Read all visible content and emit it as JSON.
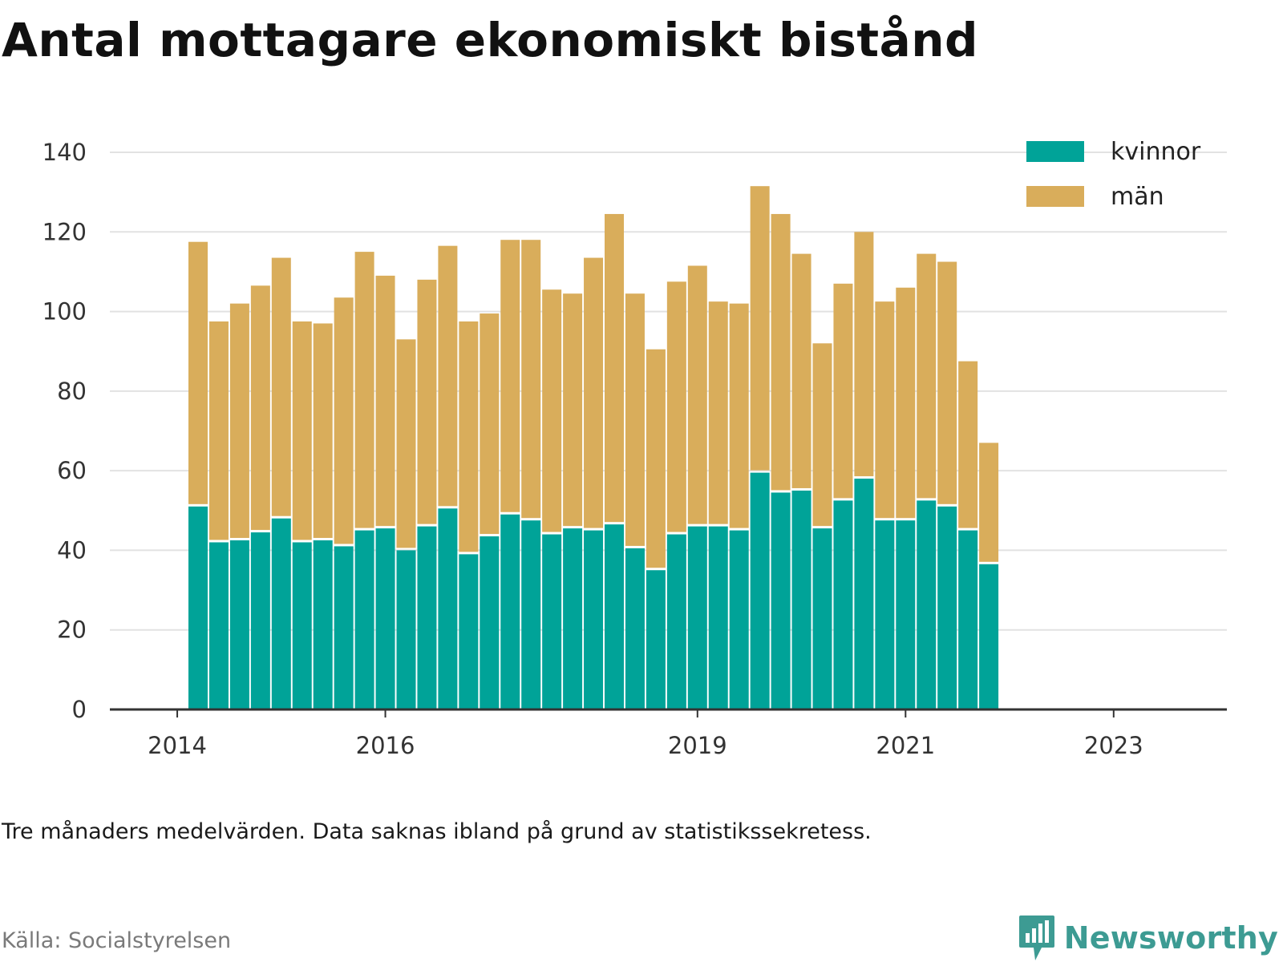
{
  "title": "Antal mottagare ekonomiskt bistånd",
  "note": "Tre månaders medelvärden. Data saknas ibland på grund av statistikssekretess.",
  "source": "Källa: Socialstyrelsen",
  "brand": {
    "name": "Newsworthy",
    "icon": "newsworthy-logo-icon",
    "color": "#3d9b93"
  },
  "colors": {
    "kvinnor": "#00a398",
    "man": "#d9ad5b",
    "grid": "#e2e2e2",
    "axis": "#333333"
  },
  "chart_data": {
    "type": "bar",
    "stacked": true,
    "x_tick_labels": [
      "2014",
      "2016",
      "2019",
      "2021",
      "2023"
    ],
    "x_tick_positions": [
      -1,
      9,
      24,
      34,
      44
    ],
    "ylim": [
      0,
      140
    ],
    "y_ticks": [
      0,
      20,
      40,
      60,
      80,
      100,
      120,
      140
    ],
    "grid": true,
    "legend_position": "top-right",
    "series": [
      {
        "name": "kvinnor",
        "color": "#00a398",
        "values": [
          51,
          42,
          42.5,
          44.5,
          48,
          42,
          42.5,
          41,
          45,
          45.5,
          40,
          46,
          50.5,
          39,
          43.5,
          49,
          47.5,
          44,
          45.5,
          45,
          46.5,
          40.5,
          35,
          44,
          46,
          46,
          45,
          59.5,
          54.5,
          55,
          45.5,
          52.5,
          58,
          47.5,
          47.5,
          52.5,
          51,
          45,
          36.5
        ]
      },
      {
        "name": "män",
        "color": "#d9ad5b",
        "values": [
          66.5,
          55.5,
          59.5,
          62,
          65.5,
          55.5,
          54.5,
          62.5,
          70,
          63.5,
          53,
          62,
          66,
          58.5,
          56,
          69,
          70.5,
          61.5,
          59,
          68.5,
          78,
          64,
          55.5,
          63.5,
          65.5,
          56.5,
          57,
          72,
          70,
          59.5,
          46.5,
          54.5,
          62,
          55,
          58.5,
          62,
          61.5,
          42.5,
          30.5
        ]
      }
    ]
  }
}
